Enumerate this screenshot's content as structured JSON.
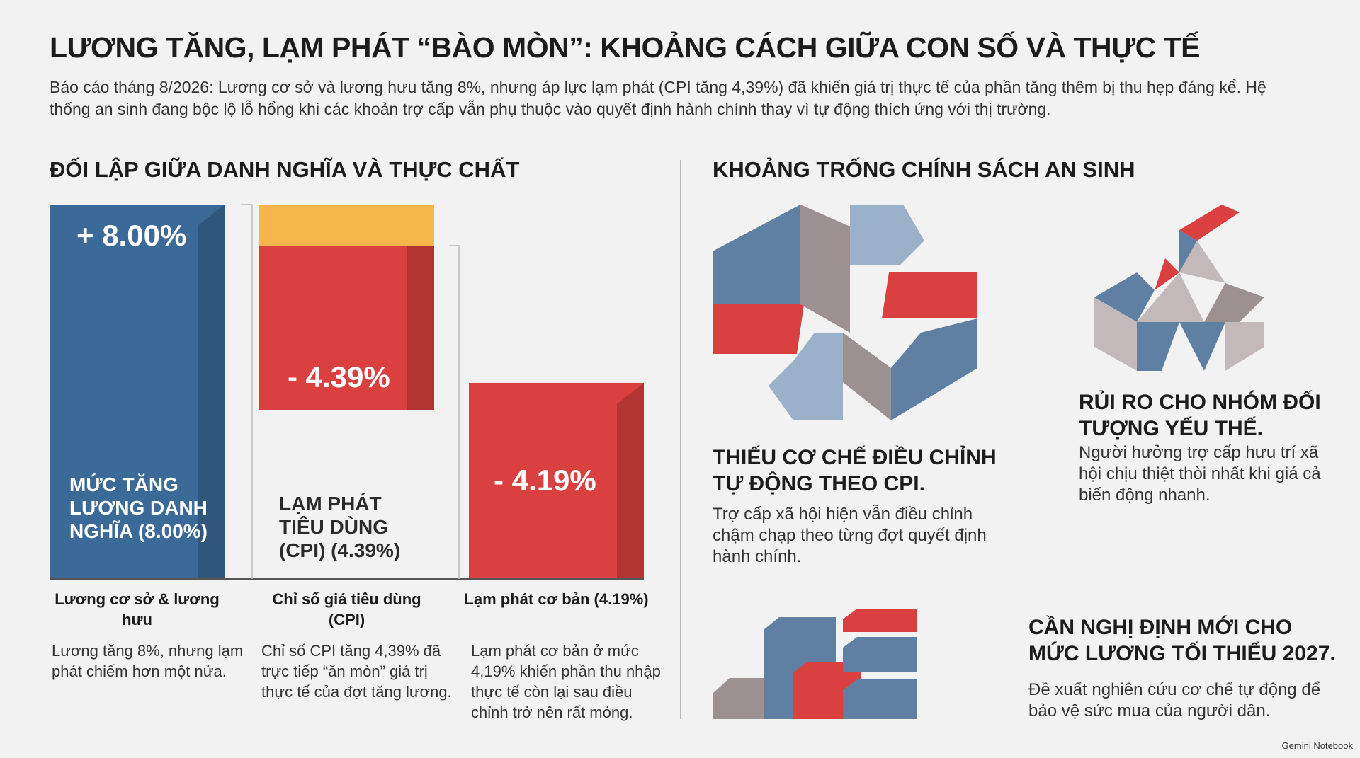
{
  "header": {
    "title": "LƯƠNG TĂNG, LẠM PHÁT “BÀO MÒN”: KHOẢNG CÁCH GIỮA CON SỐ VÀ THỰC TẾ",
    "subtitle": "Báo cáo tháng 8/2026: Lương cơ sở và lương hưu tăng 8%, nhưng áp lực lạm phát (CPI tăng 4,39%) đã khiến giá trị thực tế của phần tăng thêm bị thu hẹp đáng kể. Hệ thống an sinh đang bộc lộ lỗ hổng khi các khoản trợ cấp vẫn phụ thuộc vào quyết định hành chính thay vì tự động thích ứng với thị trường."
  },
  "chart_data": {
    "type": "waterfall",
    "title": "ĐỐI LẬP GIỮA DANH NGHĨA VÀ THỰC CHẤT",
    "categories": [
      "Lương cơ sở & lương hưu",
      "Chỉ số giá tiêu dùng (CPI)",
      "Lạm phát cơ bản (4.19%)"
    ],
    "values": [
      8,
      -4.39,
      -4.19
    ],
    "value_labels": [
      "+ 8.00%",
      "- 4.39%",
      "- 4.19%"
    ],
    "bar_texts": [
      "MỨC TĂNG LƯƠNG DANH NGHĨA (8.00%)",
      "LẠM PHÁT TIÊU DÙNG (CPI) (4.39%)",
      null
    ],
    "descriptions": [
      "Lương tăng 8%, nhưng lạm phát chiếm hơn một nửa.",
      "Chỉ số CPI tăng 4,39% đã trực tiếp “ăn mòn” giá trị thực tế của đợt tăng lương.",
      "Lạm phát cơ bản ở mức 4,19% khiến phần thu nhập thực tế còn lại sau điều chỉnh trở nên rất mỏng."
    ],
    "colors": {
      "positive": "#3b6998",
      "negative": "#d9403f"
    }
  },
  "policy": {
    "title": "KHOẢNG TRỐNG CHÍNH SÁCH AN SINH",
    "items": [
      {
        "title": "THIẾU CƠ CHẾ ĐIỀU CHỈNH TỰ ĐỘNG THEO CPI.",
        "text": "Trợ cấp xã hội hiện vẫn điều chỉnh chậm chạp theo từng đợt quyết định hành chính."
      },
      {
        "title": "RỦI RO CHO NHÓM ĐỐI TƯỢNG YẾU THẾ.",
        "text": "Người hưởng trợ cấp hưu trí xã hội chịu thiệt thòi nhất khi giá cả biến động nhanh."
      },
      {
        "title": "CẦN NGHỊ ĐỊNH MỚI CHO MỨC LƯƠNG TỐI THIỂU 2027.",
        "text": "Đề xuất nghiên cứu cơ chế tự động để bảo vệ sức mua của người dân."
      }
    ]
  },
  "footer": "Gemini Notebook"
}
